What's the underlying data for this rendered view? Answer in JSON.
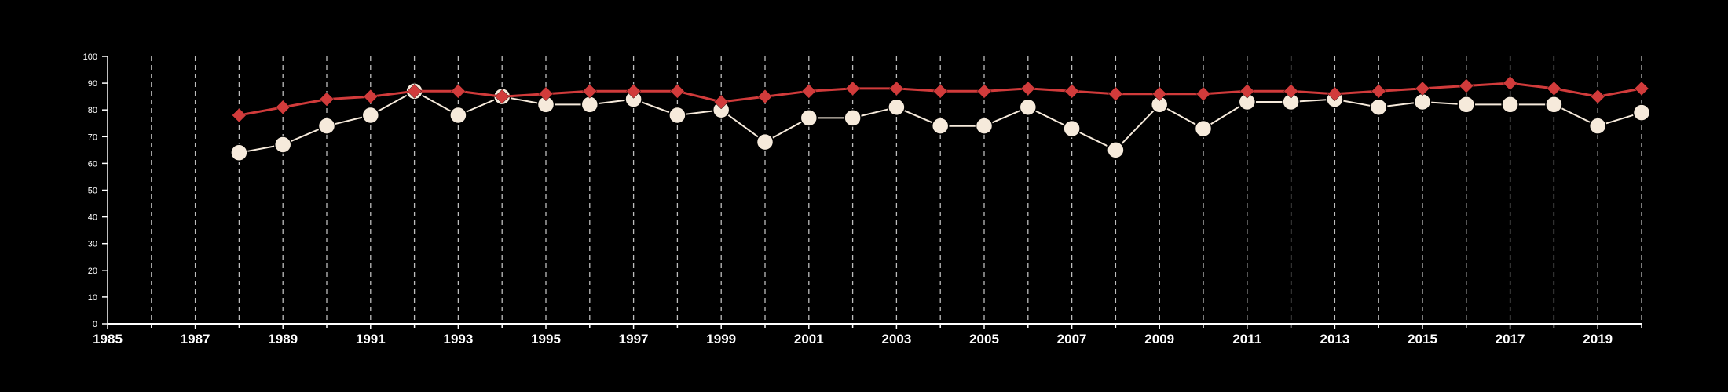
{
  "chart_data": {
    "type": "line",
    "title": "",
    "xlabel": "",
    "ylabel": "",
    "xlim": [
      1985,
      2020
    ],
    "ylim": [
      0,
      100
    ],
    "y_ticks": [
      0,
      10,
      20,
      30,
      40,
      50,
      60,
      70,
      80,
      90,
      100
    ],
    "x_tick_labels": [
      1985,
      1987,
      1989,
      1991,
      1993,
      1995,
      1997,
      1999,
      2001,
      2003,
      2005,
      2007,
      2009,
      2011,
      2013,
      2015,
      2017,
      2019
    ],
    "vertical_gridlines": "dashed, every year",
    "legend": "none",
    "x": [
      1988,
      1989,
      1990,
      1991,
      1992,
      1993,
      1994,
      1995,
      1996,
      1997,
      1998,
      1999,
      2000,
      2001,
      2002,
      2003,
      2004,
      2005,
      2006,
      2007,
      2008,
      2009,
      2010,
      2011,
      2012,
      2013,
      2014,
      2015,
      2016,
      2017,
      2018,
      2019,
      2020
    ],
    "series": [
      {
        "marker": "diamond",
        "color": "#d13b3b",
        "values": [
          78,
          81,
          84,
          85,
          87,
          87,
          85,
          86,
          87,
          87,
          87,
          83,
          85,
          87,
          88,
          88,
          87,
          87,
          88,
          87,
          86,
          86,
          86,
          87,
          87,
          86,
          87,
          88,
          89,
          90,
          88,
          85,
          88
        ]
      },
      {
        "marker": "circle",
        "color": "#f6eadb",
        "values": [
          64,
          67,
          74,
          78,
          87,
          78,
          85,
          82,
          82,
          84,
          78,
          80,
          68,
          77,
          77,
          81,
          74,
          74,
          81,
          73,
          65,
          82,
          73,
          83,
          83,
          84,
          81,
          83,
          82,
          82,
          82,
          74,
          79
        ]
      }
    ]
  }
}
